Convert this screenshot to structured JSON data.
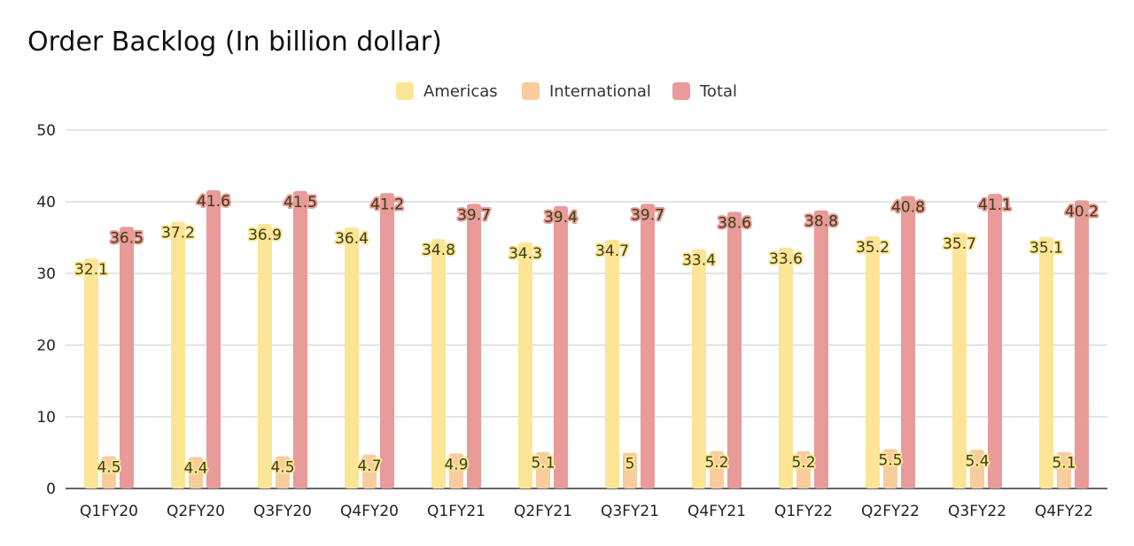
{
  "chart_data": {
    "type": "bar",
    "title": "Order Backlog (In billion dollar)",
    "xlabel": "",
    "ylabel": "",
    "ylim": [
      0,
      50
    ],
    "yticks": [
      0,
      10,
      20,
      30,
      40,
      50
    ],
    "grid": true,
    "legend_position": "top-center",
    "categories": [
      "Q1FY20",
      "Q2FY20",
      "Q3FY20",
      "Q4FY20",
      "Q1FY21",
      "Q2FY21",
      "Q3FY21",
      "Q4FY21",
      "Q1FY22",
      "Q2FY22",
      "Q3FY22",
      "Q4FY22"
    ],
    "series": [
      {
        "name": "Americas",
        "color": "#fce595",
        "label_halo": "#fce595",
        "values": [
          32.1,
          37.2,
          36.9,
          36.4,
          34.8,
          34.3,
          34.7,
          33.4,
          33.6,
          35.2,
          35.7,
          35.1
        ]
      },
      {
        "name": "International",
        "color": "#f9cc9d",
        "label_halo": "#fce595",
        "values": [
          4.5,
          4.4,
          4.5,
          4.7,
          4.9,
          5.1,
          5,
          5.2,
          5.2,
          5.5,
          5.4,
          5.1
        ]
      },
      {
        "name": "Total",
        "color": "#e89b99",
        "label_halo": "#e89b99",
        "values": [
          36.5,
          41.6,
          41.5,
          41.2,
          39.7,
          39.4,
          39.7,
          38.6,
          38.8,
          40.8,
          41.1,
          40.2
        ]
      }
    ]
  }
}
